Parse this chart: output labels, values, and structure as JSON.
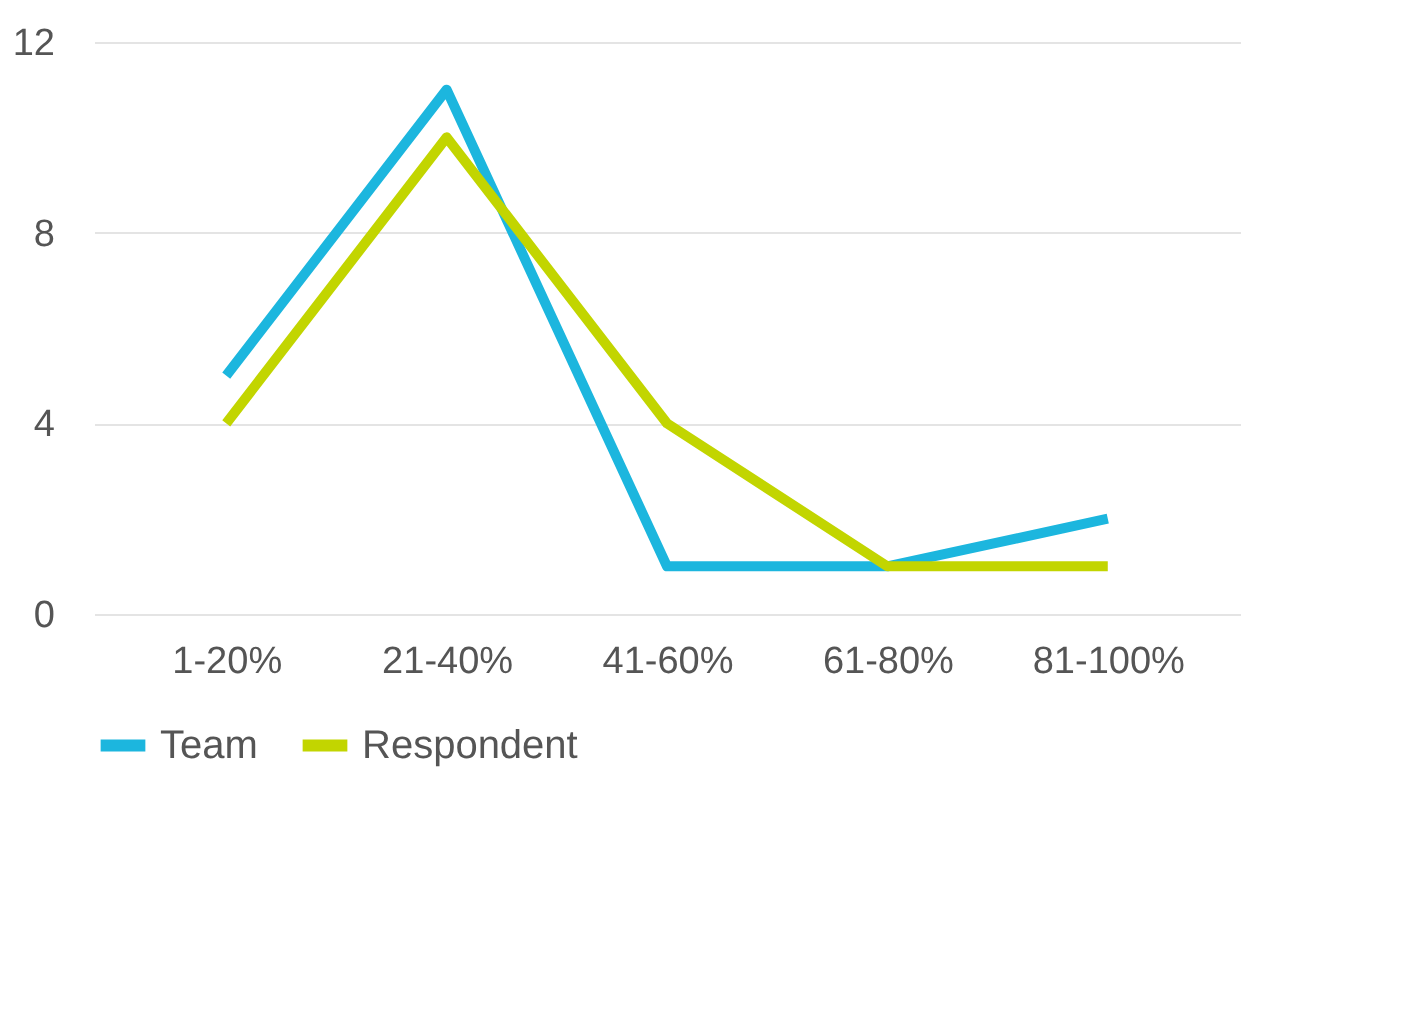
{
  "chart_data": {
    "type": "line",
    "categories": [
      "1-20%",
      "21-40%",
      "41-60%",
      "61-80%",
      "81-100%"
    ],
    "series": [
      {
        "name": "Team",
        "color": "#1cb6de",
        "values": [
          5,
          11,
          1,
          1,
          2
        ]
      },
      {
        "name": "Respondent",
        "color": "#c2d500",
        "values": [
          4,
          10,
          4,
          1,
          1
        ]
      }
    ],
    "ylim": [
      0,
      12
    ],
    "yticks": [
      0,
      4,
      8,
      12
    ],
    "grid": "y",
    "legend": "bottom",
    "marker": "none",
    "line_style": "solid"
  }
}
